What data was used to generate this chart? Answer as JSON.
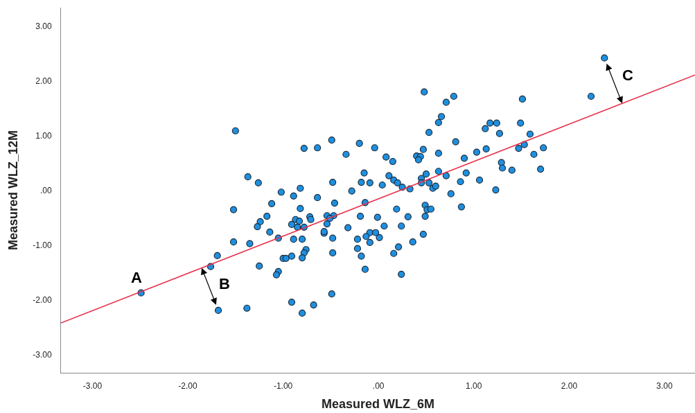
{
  "chart_data": {
    "type": "scatter",
    "xlabel": "Measured WLZ_6M",
    "ylabel": "Measured WLZ_12M",
    "xlim": [
      -3.33,
      3.32
    ],
    "ylim": [
      -3.33,
      3.34
    ],
    "xticks": [
      {
        "value": -3,
        "label": "-3.00"
      },
      {
        "value": -2,
        "label": "-2.00"
      },
      {
        "value": -1,
        "label": "-1.00"
      },
      {
        "value": 0,
        "label": ".00"
      },
      {
        "value": 1,
        "label": "1.00"
      },
      {
        "value": 2,
        "label": "2.00"
      },
      {
        "value": 3,
        "label": "3.00"
      }
    ],
    "yticks": [
      {
        "value": -3,
        "label": "-3.00"
      },
      {
        "value": -2,
        "label": "-2.00"
      },
      {
        "value": -1,
        "label": "-1.00"
      },
      {
        "value": 0,
        "label": ".00"
      },
      {
        "value": 1,
        "label": "1.00"
      },
      {
        "value": 2,
        "label": "2.00"
      },
      {
        "value": 3,
        "label": "3.00"
      }
    ],
    "marker": "circle",
    "series": [
      {
        "color": "#1f8fdf",
        "x": [
          -1.5,
          -1.37,
          -1.26,
          -1.12,
          -1.52,
          -1.17,
          -1.24,
          -1.27,
          -1.14,
          -1.52,
          -1.35,
          -1.69,
          -1.76,
          -1.25,
          -2.49,
          -1.68,
          -1.38,
          -0.49,
          -0.78,
          -0.64,
          -0.2,
          -0.04,
          -0.34,
          0.08,
          0.15,
          -0.15,
          -0.48,
          -0.18,
          -0.09,
          0.11,
          0.16,
          0.2,
          0.04,
          -1.02,
          -0.82,
          -0.89,
          -0.64,
          -0.28,
          -0.46,
          -0.14,
          -0.82,
          0.19,
          -0.72,
          -0.71,
          -0.54,
          -0.47,
          -0.51,
          -0.19,
          -0.01,
          -0.87,
          -0.83,
          -0.91,
          -0.85,
          -0.78,
          -0.54,
          -0.32,
          0.06,
          0.24,
          -0.57,
          -0.57,
          -0.09,
          -0.03,
          -0.13,
          0.01,
          -1.05,
          -0.89,
          -0.8,
          -0.48,
          -0.22,
          -0.09,
          0.21,
          -0.76,
          -0.78,
          -0.8,
          -0.91,
          -1.0,
          -0.97,
          -0.48,
          -0.22,
          -0.18,
          0.16,
          -1.05,
          -1.07,
          -0.14,
          0.24,
          -0.49,
          -0.91,
          -0.68,
          -0.8,
          0.48,
          0.79,
          0.71,
          0.66,
          0.63,
          0.53,
          1.51,
          1.17,
          1.24,
          1.12,
          1.27,
          1.49,
          1.59,
          0.81,
          0.47,
          0.4,
          0.44,
          0.42,
          0.63,
          1.03,
          1.13,
          1.47,
          1.53,
          1.73,
          1.63,
          0.9,
          1.29,
          1.3,
          1.4,
          1.7,
          0.25,
          0.33,
          0.45,
          0.45,
          0.5,
          0.63,
          0.71,
          0.53,
          0.57,
          0.6,
          0.86,
          0.92,
          1.06,
          0.76,
          1.23,
          0.87,
          0.49,
          0.51,
          0.55,
          0.49,
          0.31,
          0.47,
          0.36,
          2.37,
          2.23
        ],
        "values": [
          1.09,
          0.25,
          0.14,
          -0.24,
          -0.35,
          -0.47,
          -0.57,
          -0.66,
          -0.76,
          -0.94,
          -0.97,
          -1.19,
          -1.39,
          -1.38,
          -1.87,
          -2.19,
          -2.15,
          0.92,
          0.77,
          0.78,
          0.86,
          0.78,
          0.66,
          0.61,
          0.53,
          0.32,
          0.15,
          0.15,
          0.14,
          0.27,
          0.19,
          0.14,
          0.1,
          -0.03,
          0.04,
          -0.1,
          -0.13,
          -0.01,
          -0.23,
          -0.22,
          -0.33,
          -0.34,
          -0.48,
          -0.53,
          -0.46,
          -0.46,
          -0.51,
          -0.47,
          -0.49,
          -0.53,
          -0.56,
          -0.62,
          -0.67,
          -0.67,
          -0.61,
          -0.68,
          -0.65,
          -0.65,
          -0.78,
          -0.75,
          -0.77,
          -0.77,
          -0.84,
          -0.86,
          -0.87,
          -0.89,
          -0.89,
          -0.87,
          -0.89,
          -0.95,
          -1.03,
          -1.08,
          -1.14,
          -1.23,
          -1.2,
          -1.24,
          -1.24,
          -1.14,
          -1.06,
          -1.2,
          -1.15,
          -1.48,
          -1.54,
          -1.44,
          -1.53,
          -1.89,
          -2.04,
          -2.09,
          -2.24,
          1.8,
          1.72,
          1.61,
          1.35,
          1.24,
          1.06,
          1.67,
          1.23,
          1.23,
          1.13,
          1.04,
          1.23,
          1.03,
          0.89,
          0.75,
          0.63,
          0.62,
          0.56,
          0.68,
          0.7,
          0.76,
          0.77,
          0.84,
          0.78,
          0.66,
          0.59,
          0.51,
          0.41,
          0.37,
          0.39,
          0.06,
          0.03,
          0.22,
          0.14,
          0.3,
          0.35,
          0.27,
          0.14,
          0.04,
          0.08,
          0.16,
          0.32,
          0.19,
          -0.06,
          0.01,
          -0.3,
          -0.27,
          -0.35,
          -0.34,
          -0.47,
          -0.48,
          -0.8,
          -0.94,
          2.42,
          1.72
        ]
      },
      {
        "type": "line",
        "marker": "none",
        "color": "#e8304a",
        "x": [
          -3.33,
          3.32
        ],
        "values": [
          -2.42,
          2.11
        ]
      }
    ],
    "annotations": [
      {
        "text": "A",
        "x": -2.49,
        "y": -1.87
      },
      {
        "text": "B",
        "x": -1.68,
        "y": -2.19
      },
      {
        "text": "C",
        "x": 2.37,
        "y": 2.42
      }
    ]
  }
}
